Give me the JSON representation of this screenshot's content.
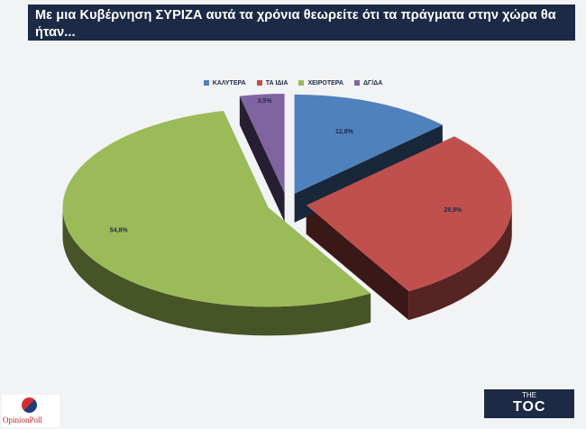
{
  "title": "Με μια Κυβέρνηση ΣΥΡΙΖΑ αυτά τα χρόνια θεωρείτε ότι τα πράγματα στην χώρα θα ήταν...",
  "chart_data": {
    "type": "pie",
    "categories": [
      "ΚΑΛΥΤΕΡΑ",
      "ΤΑ ΙΔΙΑ",
      "ΧΕΙΡΟΤΕΡΑ",
      "ΔΓ/ΔΑ"
    ],
    "values": [
      12.8,
      28.9,
      54.8,
      3.5
    ],
    "labels": [
      "12,8%",
      "28,9%",
      "54,8%",
      "3,5%"
    ],
    "colors": [
      "#4f81bd",
      "#c0504d",
      "#9bbb59",
      "#8064a2"
    ],
    "legend": "top"
  },
  "logos": {
    "left": "OpinionPoll",
    "right_small": "THE",
    "right_big": "TOC"
  }
}
